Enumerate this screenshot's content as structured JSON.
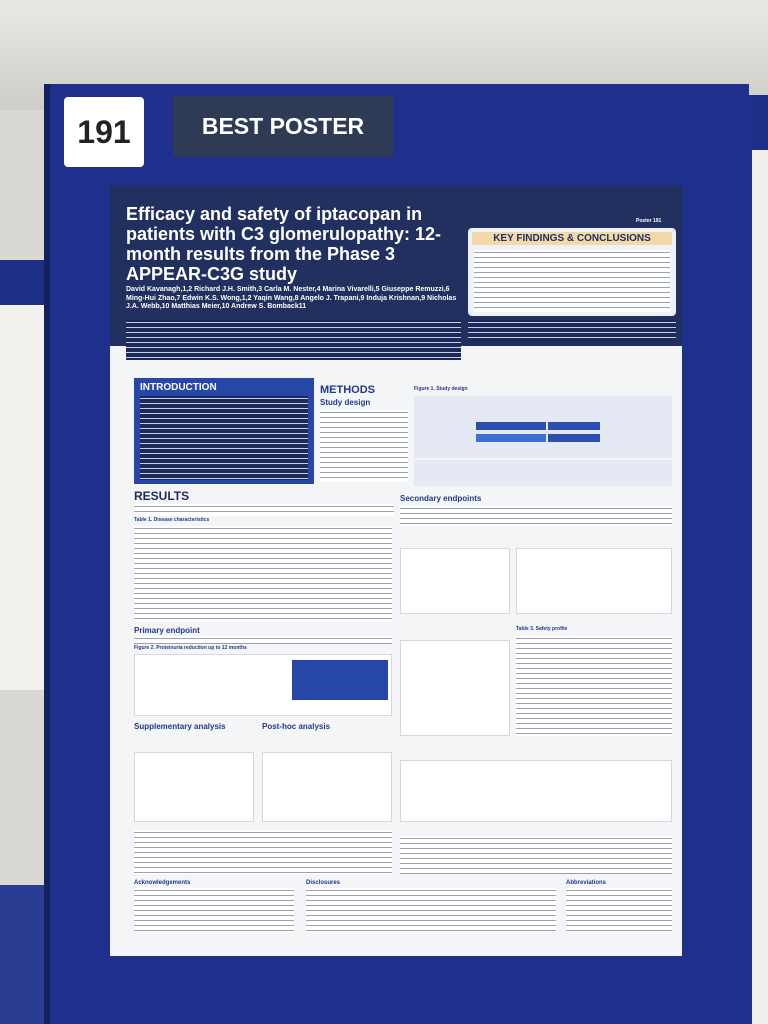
{
  "badge": "191",
  "award": "BEST POSTER",
  "poster": {
    "title": "Efficacy and safety of iptacopan in patients with C3 glomerulopathy: 12-month results from the Phase 3 APPEAR-C3G study",
    "number": "Poster 191",
    "authors": "David Kavanagh,1,2 Richard J.H. Smith,3 Carla M. Nester,4 Marina Vivarelli,5 Giuseppe Remuzzi,6 Ming-Hui Zhao,7 Edwin K.S. Wong,1,2 Yaqin Wang,8 Angelo J. Trapani,9 Induja Krishnan,9 Nicholas J.A. Webb,10 Matthias Meier,10 Andrew S. Bomback11",
    "key_findings": "KEY FINDINGS & CONCLUSIONS",
    "sections": {
      "introduction": "INTRODUCTION",
      "methods": "METHODS",
      "study_design": "Study design",
      "figure1": "Figure 1. Study design",
      "results": "RESULTS",
      "table1": "Table 1. Disease characteristics",
      "primary_endpoint": "Primary endpoint",
      "figure2": "Figure 2. Proteinuria reduction up to 12 months",
      "supplementary": "Supplementary analysis",
      "posthoc": "Post-hoc analysis",
      "secondary": "Secondary endpoints",
      "table3": "Table 3. Safety profile",
      "acknowledgements": "Acknowledgements",
      "disclosures": "Disclosures",
      "abbreviations": "Abbreviations"
    }
  }
}
